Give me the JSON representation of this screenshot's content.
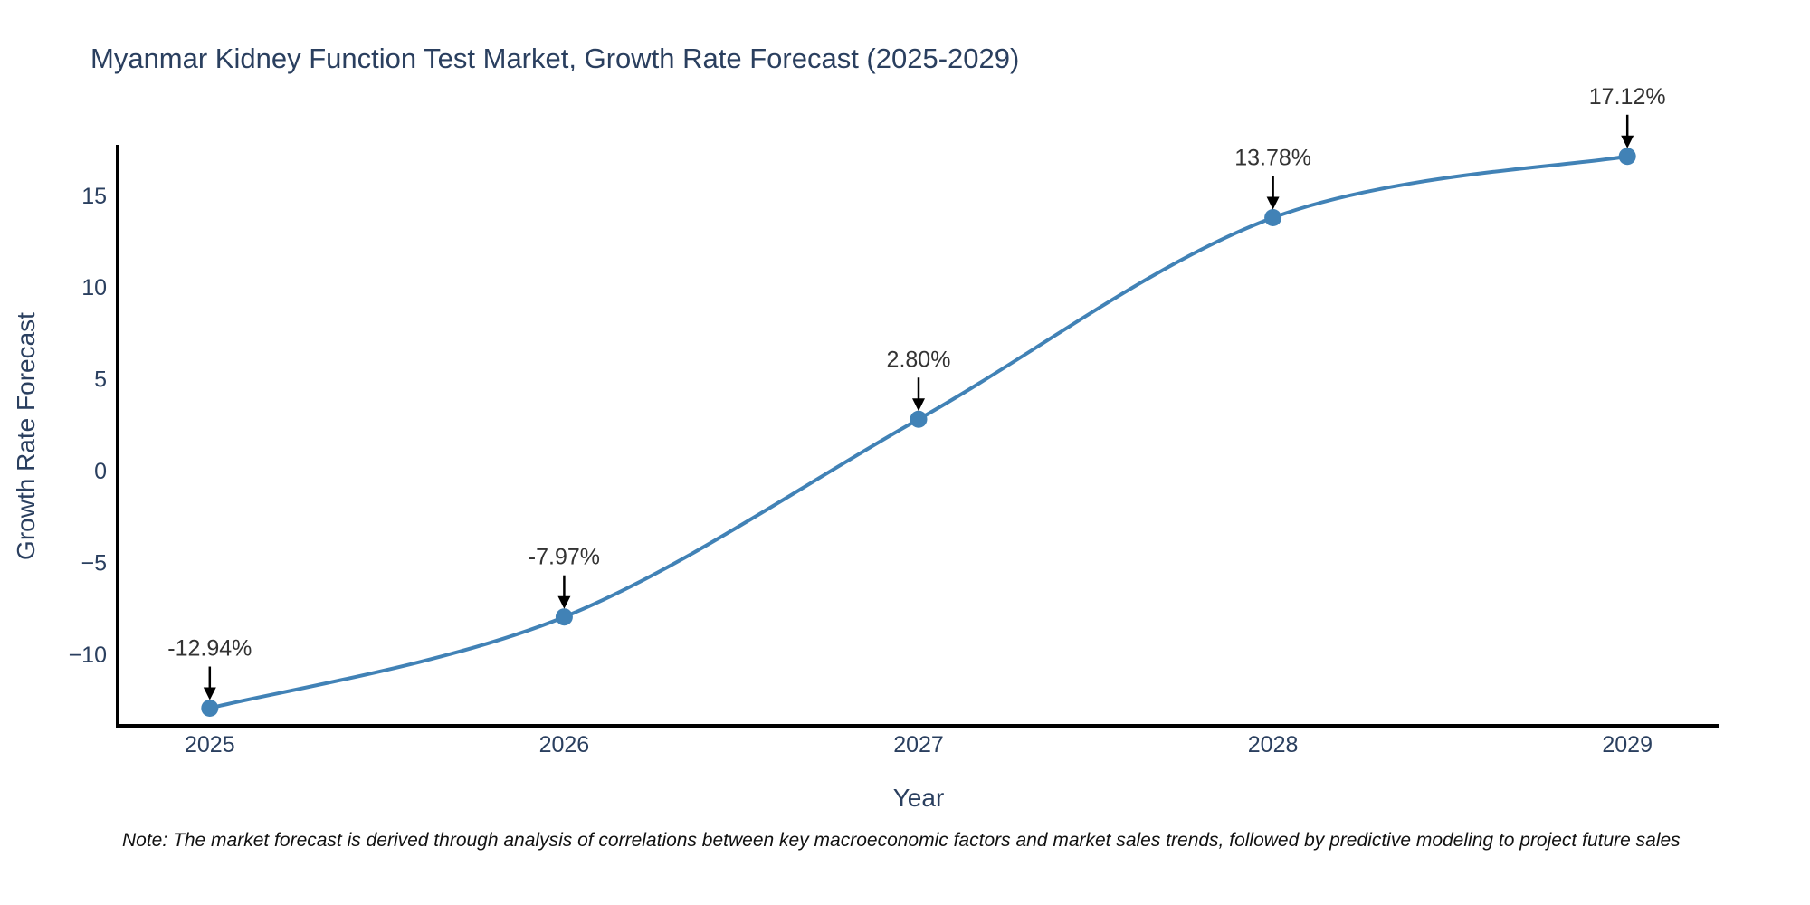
{
  "title": "Myanmar Kidney Function Test Market, Growth Rate Forecast (2025-2029)",
  "note": "Note: The market forecast is derived through analysis of correlations between key macroeconomic factors and market sales trends, followed by predictive modeling to project future sales",
  "chart_data": {
    "type": "line",
    "title": "Myanmar Kidney Function Test Market, Growth Rate Forecast (2025-2029)",
    "xlabel": "Year",
    "ylabel": "Growth Rate Forecast",
    "x": [
      2025,
      2026,
      2027,
      2028,
      2029
    ],
    "values": [
      -12.94,
      -7.97,
      2.8,
      13.78,
      17.12
    ],
    "point_labels": [
      "-12.94%",
      "-7.97%",
      "2.80%",
      "13.78%",
      "17.12%"
    ],
    "yticks": [
      15,
      10,
      5,
      0,
      -5,
      -10
    ],
    "ylim": [
      -13.9,
      17.75
    ],
    "xlim": [
      2024.74,
      2029.26
    ],
    "line_shape": "spline",
    "grid": false,
    "legend": false,
    "colors": {
      "line": "#4182b6",
      "marker": "#4182b6",
      "axis": "#000000",
      "tick_text": "#2a3f5f",
      "annotation_text": "#333333",
      "arrow": "#000000",
      "title_text": "#2a3f5f",
      "background": "#ffffff"
    }
  }
}
